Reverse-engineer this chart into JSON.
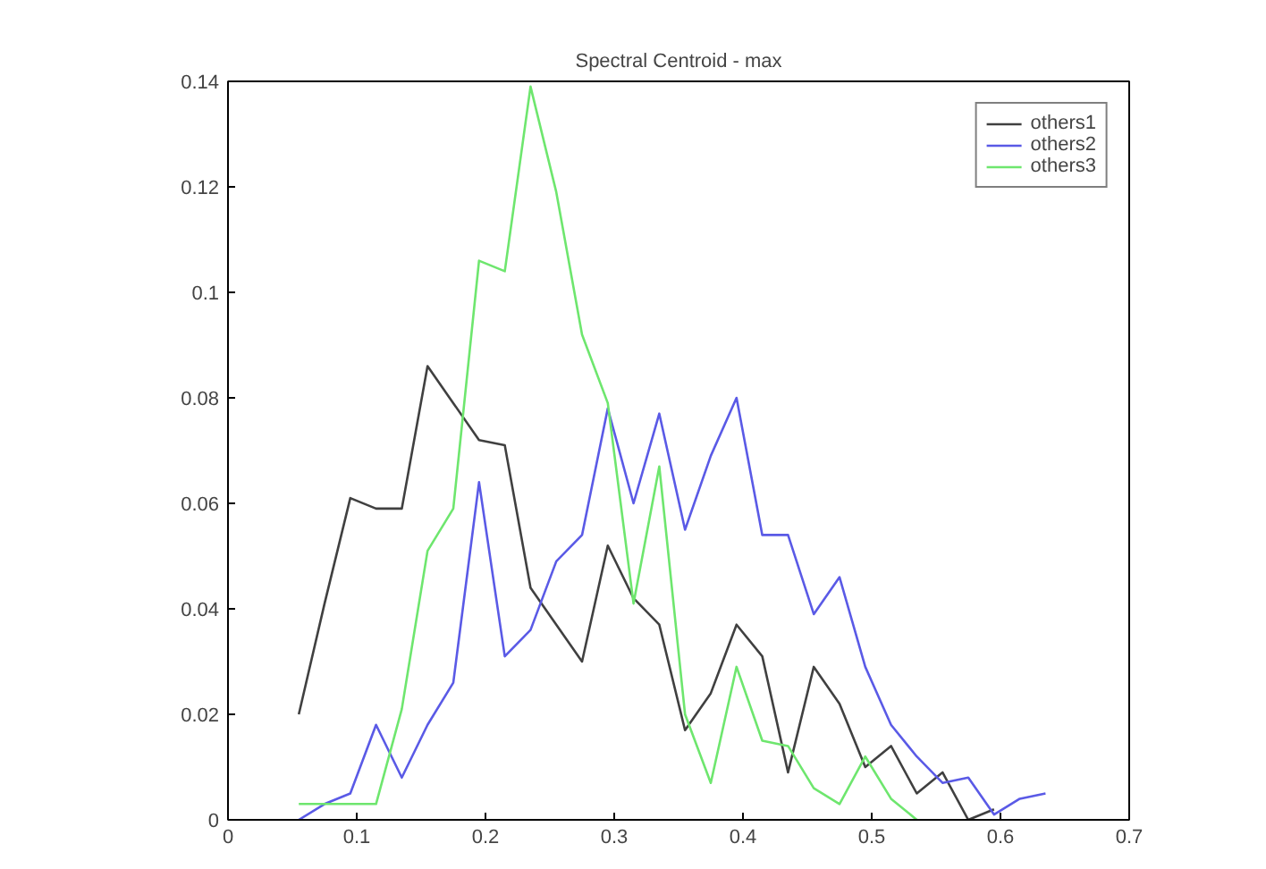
{
  "chart_data": {
    "type": "line",
    "title": "Spectral Centroid - max",
    "xlim": [
      0,
      0.7
    ],
    "xticks": [
      0,
      0.1,
      0.2,
      0.3,
      0.4,
      0.5,
      0.6,
      0.7
    ],
    "ylim": [
      0,
      0.14
    ],
    "yticks": [
      0,
      0.02,
      0.04,
      0.06,
      0.08,
      0.1,
      0.12,
      0.14
    ],
    "grid": false,
    "legend": "top right",
    "marker": "none",
    "line_style": "solid",
    "series": [
      {
        "name": "others1",
        "color": "#404040",
        "x": [
          0.055,
          0.075,
          0.095,
          0.115,
          0.135,
          0.155,
          0.175,
          0.195,
          0.215,
          0.235,
          0.255,
          0.275,
          0.295,
          0.315,
          0.335,
          0.355,
          0.375,
          0.395,
          0.415,
          0.435,
          0.455,
          0.475,
          0.495,
          0.515,
          0.535,
          0.555,
          0.575,
          0.595
        ],
        "values": [
          0.02,
          0.041,
          0.061,
          0.059,
          0.059,
          0.086,
          0.079,
          0.072,
          0.071,
          0.044,
          0.037,
          0.03,
          0.052,
          0.042,
          0.037,
          0.017,
          0.024,
          0.037,
          0.031,
          0.009,
          0.029,
          0.022,
          0.01,
          0.014,
          0.005,
          0.009,
          0.0,
          0.002
        ]
      },
      {
        "name": "others2",
        "color": "#5a5ae6",
        "x": [
          0.055,
          0.075,
          0.095,
          0.115,
          0.135,
          0.155,
          0.175,
          0.195,
          0.215,
          0.235,
          0.255,
          0.275,
          0.295,
          0.315,
          0.335,
          0.355,
          0.375,
          0.395,
          0.415,
          0.435,
          0.455,
          0.475,
          0.495,
          0.515,
          0.535,
          0.555,
          0.575,
          0.595,
          0.615,
          0.635
        ],
        "values": [
          0.0,
          0.003,
          0.005,
          0.018,
          0.008,
          0.018,
          0.026,
          0.064,
          0.031,
          0.036,
          0.049,
          0.054,
          0.078,
          0.06,
          0.077,
          0.055,
          0.069,
          0.08,
          0.054,
          0.054,
          0.039,
          0.046,
          0.029,
          0.018,
          0.012,
          0.007,
          0.008,
          0.001,
          0.004,
          0.005
        ]
      },
      {
        "name": "others3",
        "color": "#6ee66e",
        "x": [
          0.055,
          0.075,
          0.095,
          0.115,
          0.135,
          0.155,
          0.175,
          0.195,
          0.215,
          0.235,
          0.255,
          0.275,
          0.295,
          0.315,
          0.335,
          0.355,
          0.375,
          0.395,
          0.415,
          0.435,
          0.455,
          0.475,
          0.495,
          0.515,
          0.535
        ],
        "values": [
          0.003,
          0.003,
          0.003,
          0.003,
          0.021,
          0.051,
          0.059,
          0.106,
          0.104,
          0.139,
          0.119,
          0.092,
          0.079,
          0.041,
          0.067,
          0.02,
          0.007,
          0.029,
          0.015,
          0.014,
          0.006,
          0.003,
          0.012,
          0.004,
          0.0
        ]
      }
    ]
  }
}
